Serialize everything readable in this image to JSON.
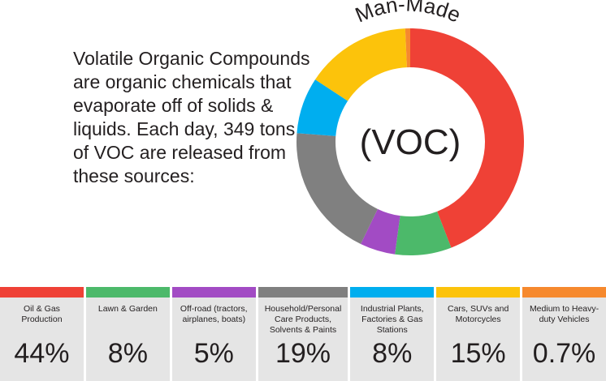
{
  "intro_text": "Volatile Organic Compounds are organic chemicals that evaporate off of solids & liquids. Each day, 349 tons of VOC are released from these sources:",
  "chart_data": {
    "type": "pie",
    "title": "Man-Made",
    "center_label": "(VOC)",
    "categories": [
      "Oil & Gas Production",
      "Lawn & Garden",
      "Off-road (tractors, airplanes, boats)",
      "Household/Personal Care Products, Solvents & Paints",
      "Industrial Plants, Factories & Gas Stations",
      "Cars, SUVs and Motorcycles",
      "Medium to Heavy-duty Vehicles"
    ],
    "values": [
      44,
      8,
      5,
      19,
      8,
      15,
      0.7
    ],
    "value_labels": [
      "44%",
      "8%",
      "5%",
      "19%",
      "8%",
      "15%",
      "0.7%"
    ],
    "colors": [
      "#ef4136",
      "#4cb96a",
      "#a24bc4",
      "#808080",
      "#00aeef",
      "#fcc30b",
      "#f6892e"
    ]
  }
}
